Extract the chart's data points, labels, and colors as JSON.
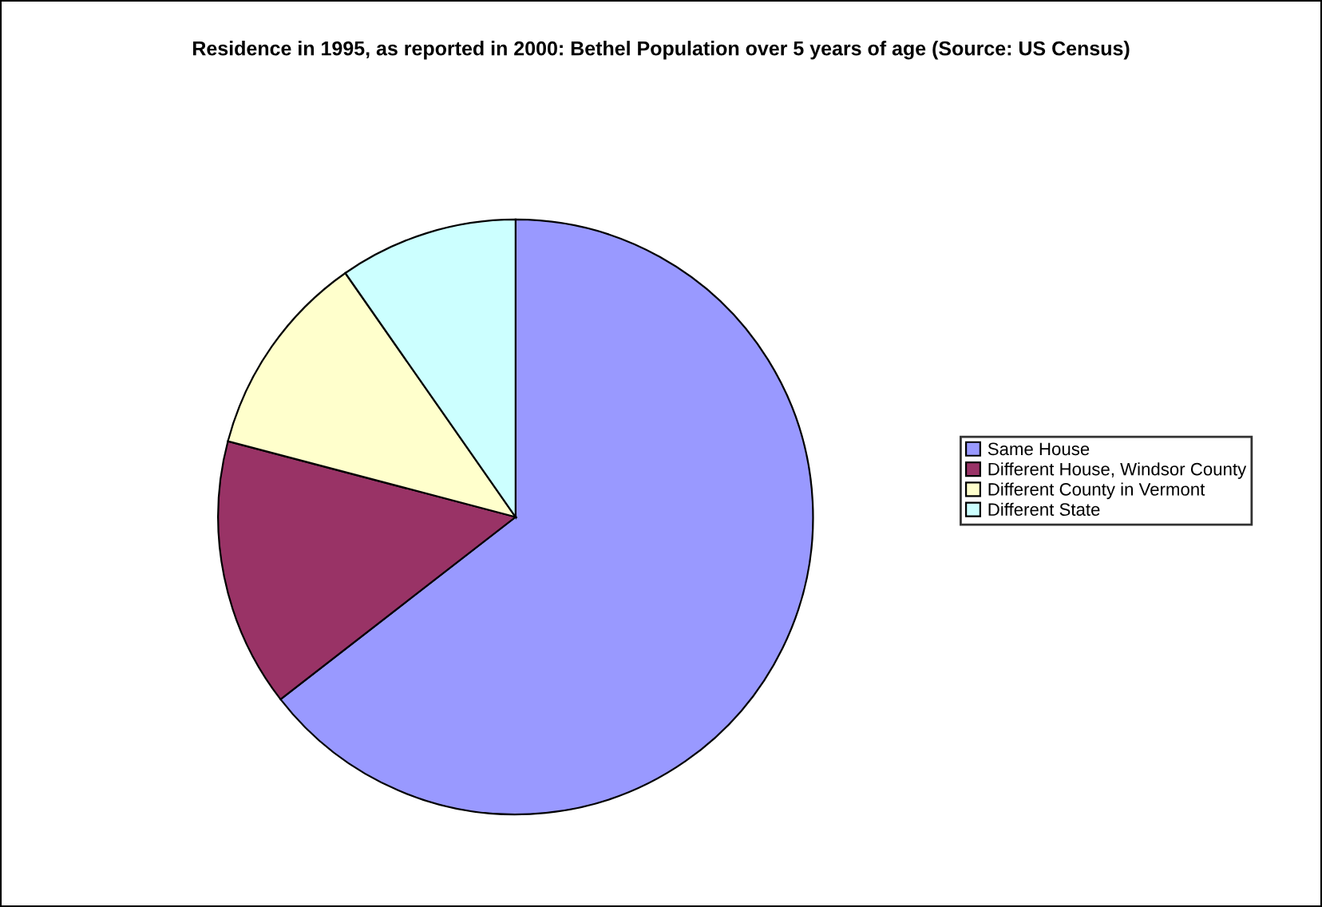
{
  "chart_data": {
    "type": "pie",
    "title": "Residence in 1995, as reported in 2000: Bethel Population over 5 years of age (Source: US Census)",
    "categories": [
      "Same House",
      "Different House, Windsor County",
      "Different County in Vermont",
      "Different State"
    ],
    "values": [
      64.5,
      14.6,
      11.2,
      9.7
    ],
    "colors": [
      "#9999ff",
      "#993366",
      "#ffffcc",
      "#ccffff"
    ],
    "legend": "right"
  }
}
